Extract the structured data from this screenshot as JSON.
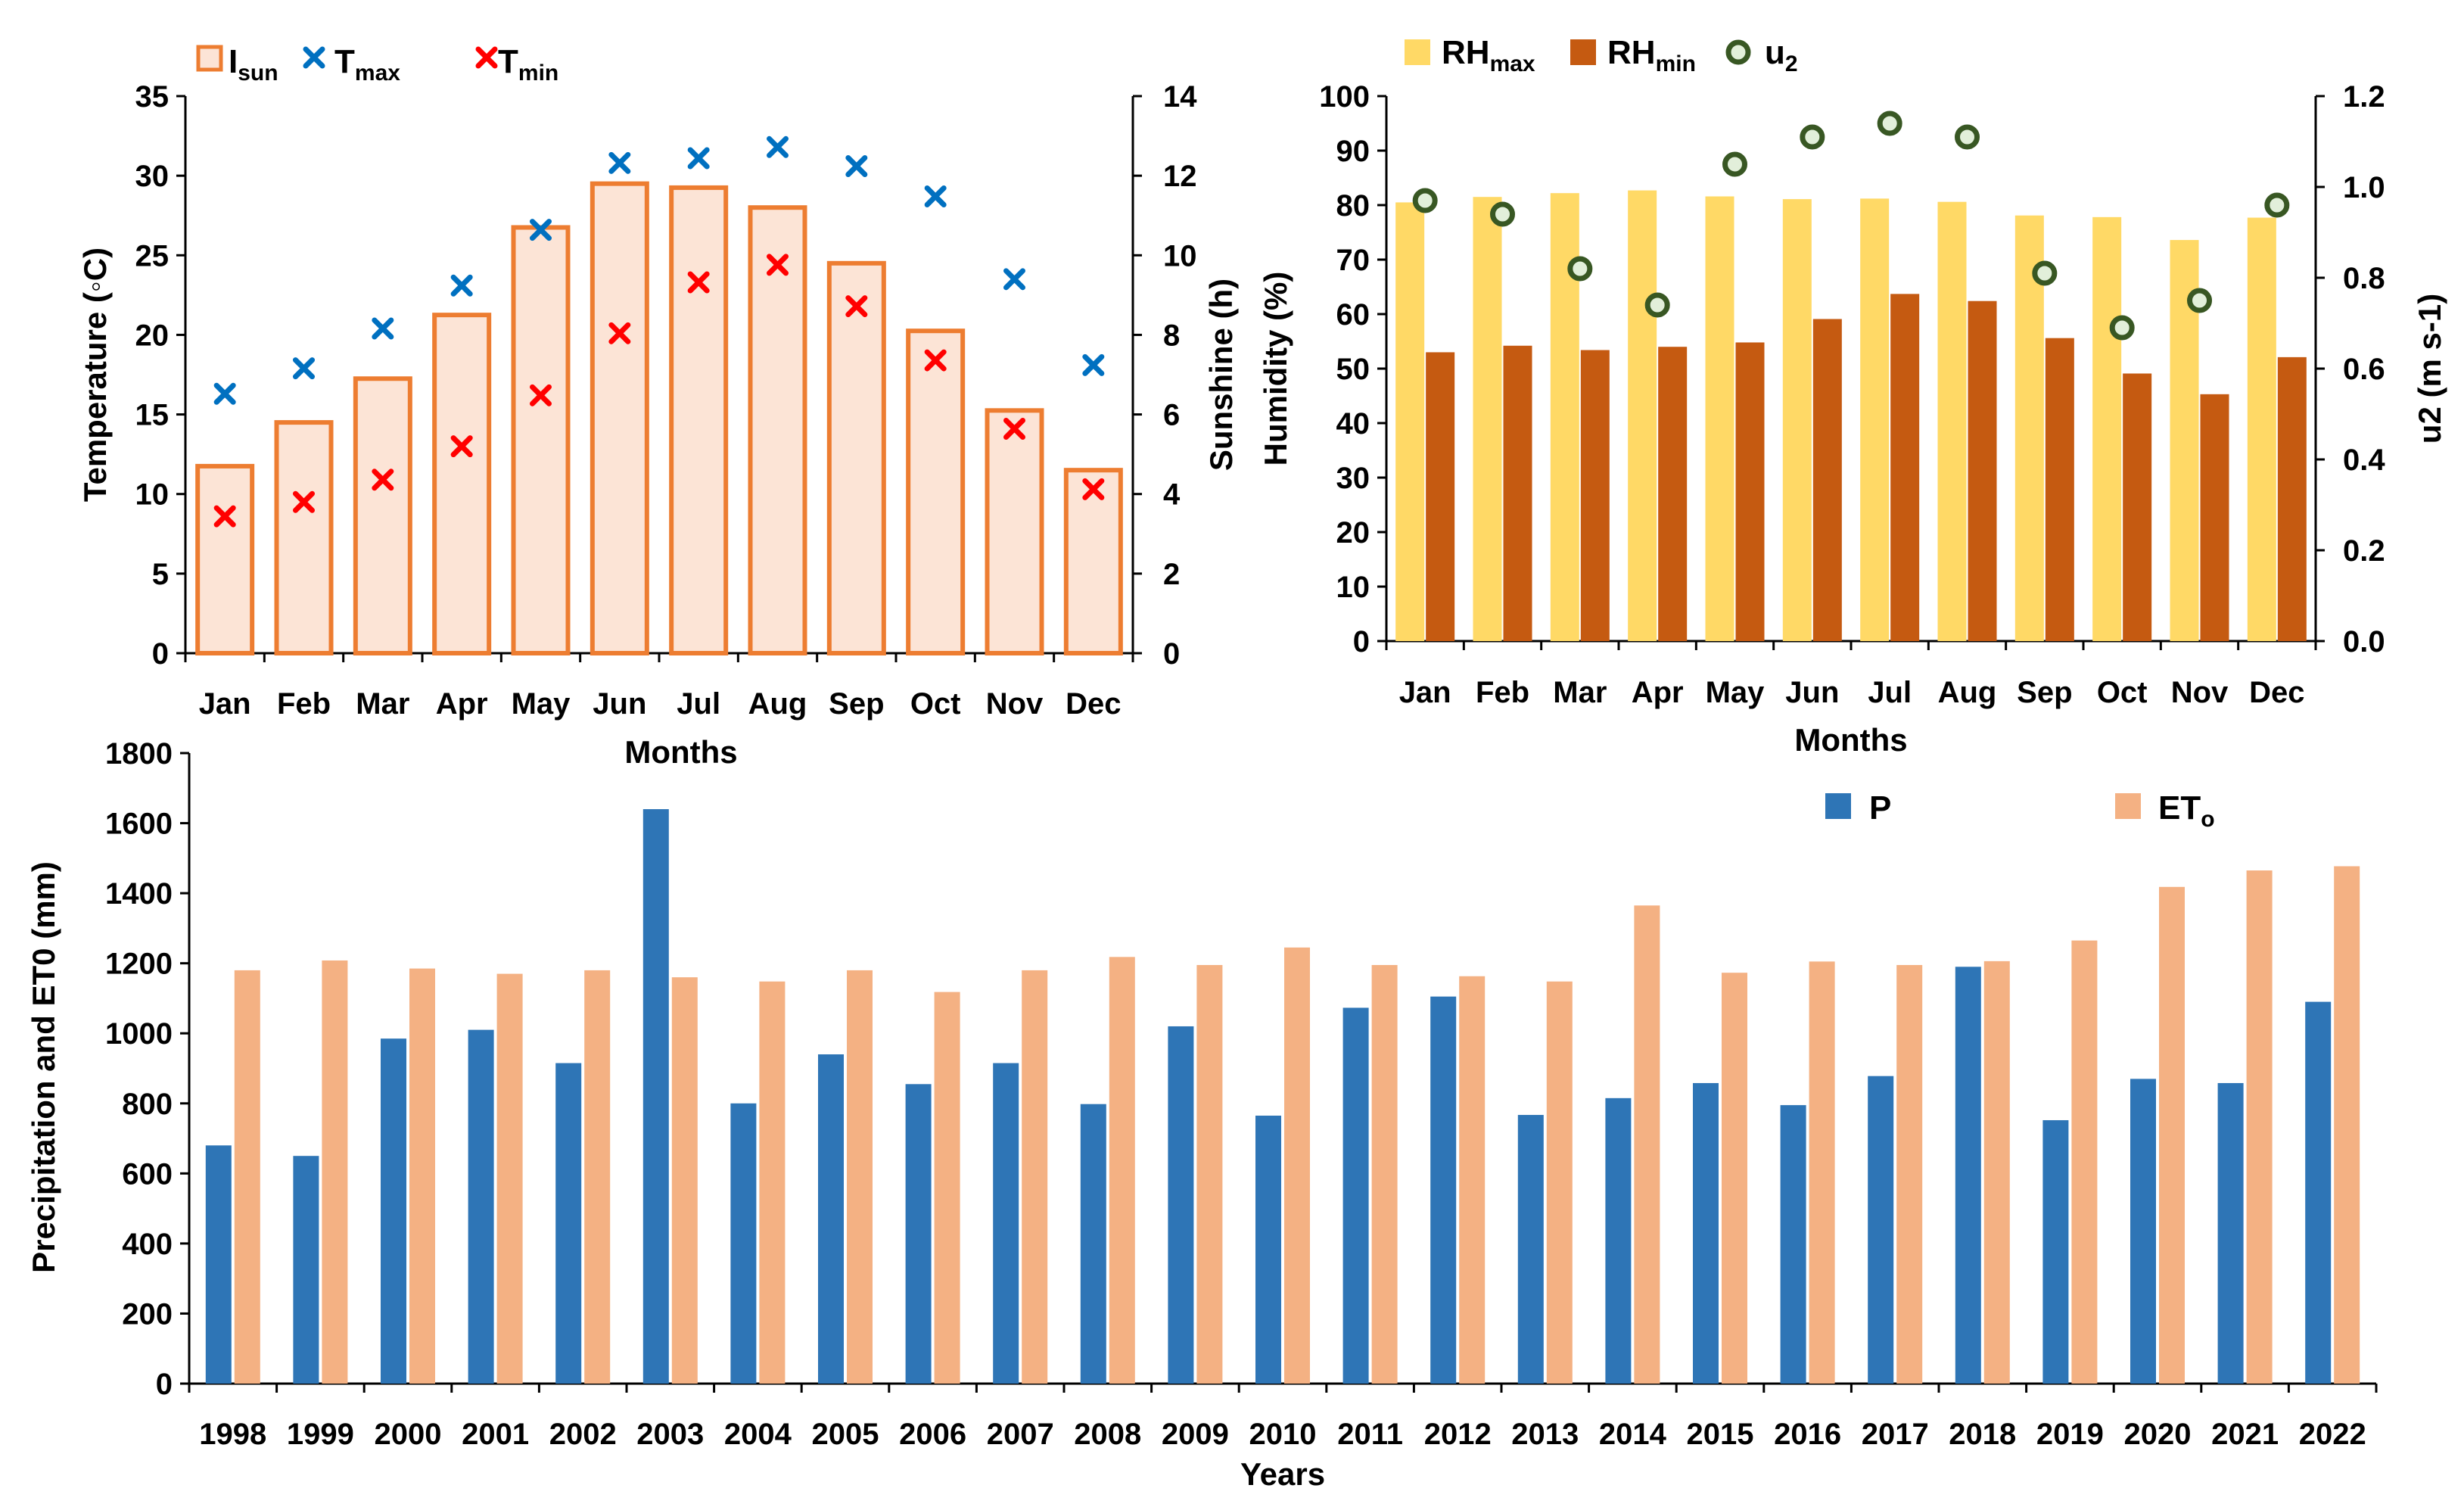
{
  "colors": {
    "sun_fill": "#fce4d6",
    "sun_edge": "#ed7d31",
    "tmax": "#0070c0",
    "tmin": "#ff0000",
    "rhmax": "#ffd966",
    "rhmin": "#c55a11",
    "u2_edge": "#385723",
    "u2_fill": "#e2efda",
    "p": "#2e75b6",
    "eto": "#f4b183"
  },
  "chart_data": [
    {
      "id": "temperature_sunshine",
      "type": "bar",
      "categories": [
        "Jan",
        "Feb",
        "Mar",
        "Apr",
        "May",
        "Jun",
        "Jul",
        "Aug",
        "Sep",
        "Oct",
        "Nov",
        "Dec"
      ],
      "xlabel": "Months",
      "ylabel": "Temperature (◦C)",
      "y2label": "Sunshine (h)",
      "ylim": [
        0,
        35
      ],
      "y2lim": [
        0,
        14
      ],
      "yticks": [
        "0",
        "5",
        "10",
        "15",
        "20",
        "25",
        "30",
        "35"
      ],
      "y2ticks": [
        "0",
        "2",
        "4",
        "6",
        "8",
        "10",
        "12",
        "14"
      ],
      "legend": [
        {
          "main": "I",
          "sub": "sun"
        },
        {
          "main": "T",
          "sub": "max"
        },
        {
          "main": "T",
          "sub": "min"
        }
      ],
      "series": [
        {
          "name": "Isun",
          "kind": "bar",
          "axis": "y2",
          "values": [
            4.7,
            5.8,
            6.9,
            8.5,
            10.7,
            11.8,
            11.7,
            11.2,
            9.8,
            8.1,
            6.1,
            4.6
          ]
        },
        {
          "name": "Tmax",
          "kind": "marker",
          "axis": "y",
          "values": [
            16.3,
            17.9,
            20.4,
            23.1,
            26.6,
            30.8,
            31.1,
            31.8,
            30.6,
            28.7,
            23.5,
            18.1
          ]
        },
        {
          "name": "Tmin",
          "kind": "marker",
          "axis": "y",
          "values": [
            8.6,
            9.5,
            10.9,
            13.0,
            16.2,
            20.1,
            23.3,
            24.4,
            21.8,
            18.4,
            14.1,
            10.3
          ]
        }
      ]
    },
    {
      "id": "humidity_wind",
      "type": "bar",
      "categories": [
        "Jan",
        "Feb",
        "Mar",
        "Apr",
        "May",
        "Jun",
        "Jul",
        "Aug",
        "Sep",
        "Oct",
        "Nov",
        "Dec"
      ],
      "xlabel": "Months",
      "ylabel": "Humidity (%)",
      "y2label": "u2 (m s-1)",
      "ylim": [
        0,
        100
      ],
      "y2lim": [
        0,
        1.2
      ],
      "yticks": [
        "0",
        "10",
        "20",
        "30",
        "40",
        "50",
        "60",
        "70",
        "80",
        "90",
        "100"
      ],
      "y2ticks": [
        "0.0",
        "0.2",
        "0.4",
        "0.6",
        "0.8",
        "1.0",
        "1.2"
      ],
      "legend": [
        {
          "main": "RH",
          "sub": "max"
        },
        {
          "main": "RH",
          "sub": "min"
        },
        {
          "main": "u",
          "sub": "2"
        }
      ],
      "series": [
        {
          "name": "RHmax",
          "kind": "bar",
          "axis": "y",
          "values": [
            80.5,
            81.5,
            82.2,
            82.7,
            81.6,
            81.1,
            81.2,
            80.6,
            78.1,
            77.8,
            73.6,
            77.7
          ]
        },
        {
          "name": "RHmin",
          "kind": "bar",
          "axis": "y",
          "values": [
            53.0,
            54.2,
            53.4,
            54.0,
            54.8,
            59.1,
            63.7,
            62.4,
            55.6,
            49.1,
            45.3,
            52.1
          ]
        },
        {
          "name": "u2",
          "kind": "marker",
          "axis": "y2",
          "values": [
            0.97,
            0.94,
            0.82,
            0.74,
            1.05,
            1.11,
            1.14,
            1.11,
            0.81,
            0.69,
            0.75,
            0.96
          ]
        }
      ]
    },
    {
      "id": "precip_eto",
      "type": "bar",
      "categories": [
        "1998",
        "1999",
        "2000",
        "2001",
        "2002",
        "2003",
        "2004",
        "2005",
        "2006",
        "2007",
        "2008",
        "2009",
        "2010",
        "2011",
        "2012",
        "2013",
        "2014",
        "2015",
        "2016",
        "2017",
        "2018",
        "2019",
        "2020",
        "2021",
        "2022"
      ],
      "xlabel": "Years",
      "ylabel": "Precipitation and ET0 (mm)",
      "ylim": [
        0,
        1800
      ],
      "yticks": [
        "0",
        "200",
        "400",
        "600",
        "800",
        "1000",
        "1200",
        "1400",
        "1600",
        "1800"
      ],
      "legend": [
        {
          "main": "P",
          "sub": ""
        },
        {
          "main": "ET",
          "sub": "o"
        }
      ],
      "series": [
        {
          "name": "P",
          "values": [
            680,
            650,
            985,
            1010,
            915,
            1640,
            800,
            940,
            855,
            915,
            798,
            1020,
            765,
            1073,
            1105,
            767,
            815,
            858,
            795,
            878,
            1190,
            752,
            870,
            858,
            1090
          ]
        },
        {
          "name": "ETo",
          "values": [
            1180,
            1208,
            1185,
            1170,
            1180,
            1160,
            1148,
            1180,
            1118,
            1180,
            1218,
            1195,
            1245,
            1195,
            1163,
            1148,
            1365,
            1173,
            1205,
            1195,
            1206,
            1265,
            1418,
            1465,
            1477
          ]
        }
      ]
    }
  ]
}
